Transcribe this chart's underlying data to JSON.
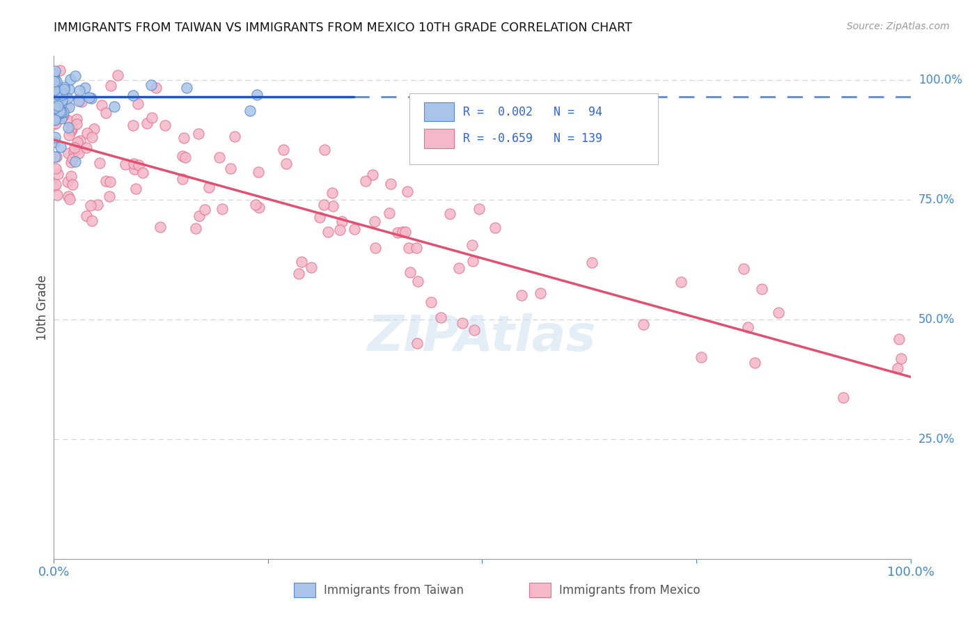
{
  "title": "IMMIGRANTS FROM TAIWAN VS IMMIGRANTS FROM MEXICO 10TH GRADE CORRELATION CHART",
  "source": "Source: ZipAtlas.com",
  "ylabel": "10th Grade",
  "taiwan_R": "0.002",
  "taiwan_N": "94",
  "mexico_R": "-0.659",
  "mexico_N": "139",
  "taiwan_color": "#aac4e8",
  "taiwan_edge_color": "#5588cc",
  "mexico_color": "#f5b8c8",
  "mexico_edge_color": "#e07090",
  "taiwan_line_color": "#2255bb",
  "mexico_line_color": "#e05070",
  "grid_color": "#c8d8e8",
  "background_color": "#ffffff",
  "xlim": [
    0.0,
    1.0
  ],
  "ylim": [
    0.0,
    1.05
  ],
  "taiwan_line_y": 0.965,
  "mexico_line_start_y": 0.875,
  "mexico_line_end_y": 0.38,
  "ytick_labels": [
    "100.0%",
    "75.0%",
    "50.0%",
    "25.0%"
  ],
  "ytick_positions": [
    1.0,
    0.75,
    0.5,
    0.25
  ]
}
